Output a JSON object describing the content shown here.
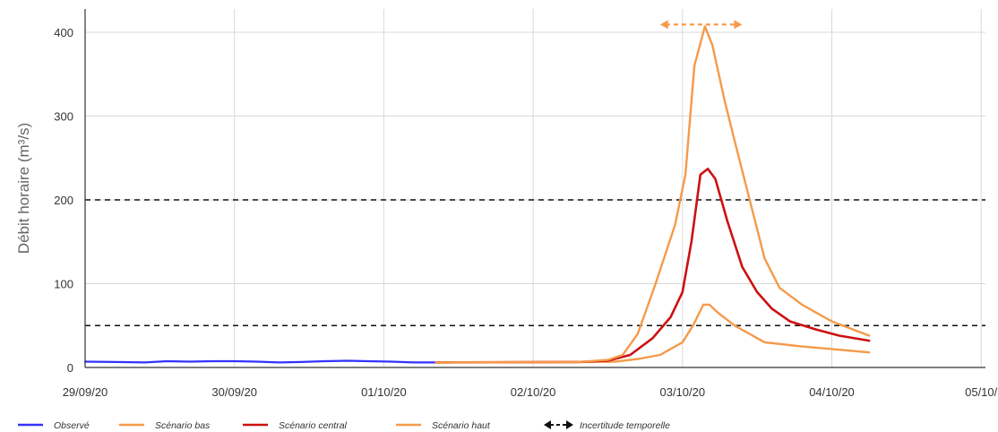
{
  "chart_data": {
    "type": "line",
    "title": "",
    "xlabel": "",
    "ylabel": "Débit horaire (m³/s)",
    "ylim": [
      0,
      420
    ],
    "yticks": [
      0,
      100,
      200,
      300,
      400
    ],
    "grid": true,
    "legend_position": "bottom",
    "x_tick_labels": [
      "29/09/20",
      "30/09/20",
      "01/10/20",
      "02/10/20",
      "03/10/20",
      "04/10/20",
      "05/10/"
    ],
    "x_ticks_days": [
      0,
      1,
      2,
      3,
      4,
      5,
      6
    ],
    "thresholds": [
      200,
      50
    ],
    "series": [
      {
        "name": "Observé",
        "color": "#3333ff",
        "points": [
          [
            0.0,
            7
          ],
          [
            0.2,
            6.5
          ],
          [
            0.4,
            6
          ],
          [
            0.55,
            7.5
          ],
          [
            0.7,
            7
          ],
          [
            0.85,
            7.5
          ],
          [
            1.0,
            7.5
          ],
          [
            1.15,
            7
          ],
          [
            1.3,
            6
          ],
          [
            1.45,
            6.5
          ],
          [
            1.6,
            7.5
          ],
          [
            1.75,
            8
          ],
          [
            1.9,
            7.5
          ],
          [
            2.05,
            7
          ],
          [
            2.2,
            6
          ],
          [
            2.35,
            6
          ]
        ]
      },
      {
        "name": "Scénario bas",
        "color": "#f59a4a",
        "points": [
          [
            2.35,
            6
          ],
          [
            3.3,
            6.5
          ],
          [
            3.55,
            7
          ],
          [
            3.7,
            10
          ],
          [
            3.85,
            15
          ],
          [
            4.0,
            30
          ],
          [
            4.07,
            50
          ],
          [
            4.14,
            75
          ],
          [
            4.18,
            75
          ],
          [
            4.24,
            65
          ],
          [
            4.35,
            50
          ],
          [
            4.55,
            30
          ],
          [
            4.8,
            25
          ],
          [
            5.0,
            22
          ],
          [
            5.25,
            18
          ]
        ]
      },
      {
        "name": "Scénario central",
        "color": "#cc1111",
        "points": [
          [
            2.35,
            6
          ],
          [
            3.3,
            6.5
          ],
          [
            3.5,
            8
          ],
          [
            3.65,
            15
          ],
          [
            3.8,
            35
          ],
          [
            3.92,
            60
          ],
          [
            4.0,
            90
          ],
          [
            4.06,
            150
          ],
          [
            4.12,
            230
          ],
          [
            4.17,
            237
          ],
          [
            4.22,
            225
          ],
          [
            4.3,
            175
          ],
          [
            4.4,
            120
          ],
          [
            4.5,
            90
          ],
          [
            4.6,
            70
          ],
          [
            4.72,
            55
          ],
          [
            4.9,
            45
          ],
          [
            5.05,
            38
          ],
          [
            5.25,
            32
          ]
        ]
      },
      {
        "name": "Scénario haut",
        "color": "#f59a4a",
        "points": [
          [
            2.35,
            6
          ],
          [
            3.3,
            6.5
          ],
          [
            3.5,
            9
          ],
          [
            3.6,
            15
          ],
          [
            3.7,
            40
          ],
          [
            3.82,
            100
          ],
          [
            3.95,
            170
          ],
          [
            4.02,
            230
          ],
          [
            4.08,
            360
          ],
          [
            4.15,
            407
          ],
          [
            4.2,
            385
          ],
          [
            4.28,
            320
          ],
          [
            4.35,
            270
          ],
          [
            4.45,
            200
          ],
          [
            4.55,
            130
          ],
          [
            4.65,
            95
          ],
          [
            4.8,
            75
          ],
          [
            5.0,
            55
          ],
          [
            5.25,
            38
          ]
        ]
      }
    ],
    "uncertainty_arrow": {
      "name": "Incertitude temporelle",
      "x_start": 3.85,
      "x_end": 4.4,
      "y": 406,
      "color": "#f59a4a"
    }
  }
}
